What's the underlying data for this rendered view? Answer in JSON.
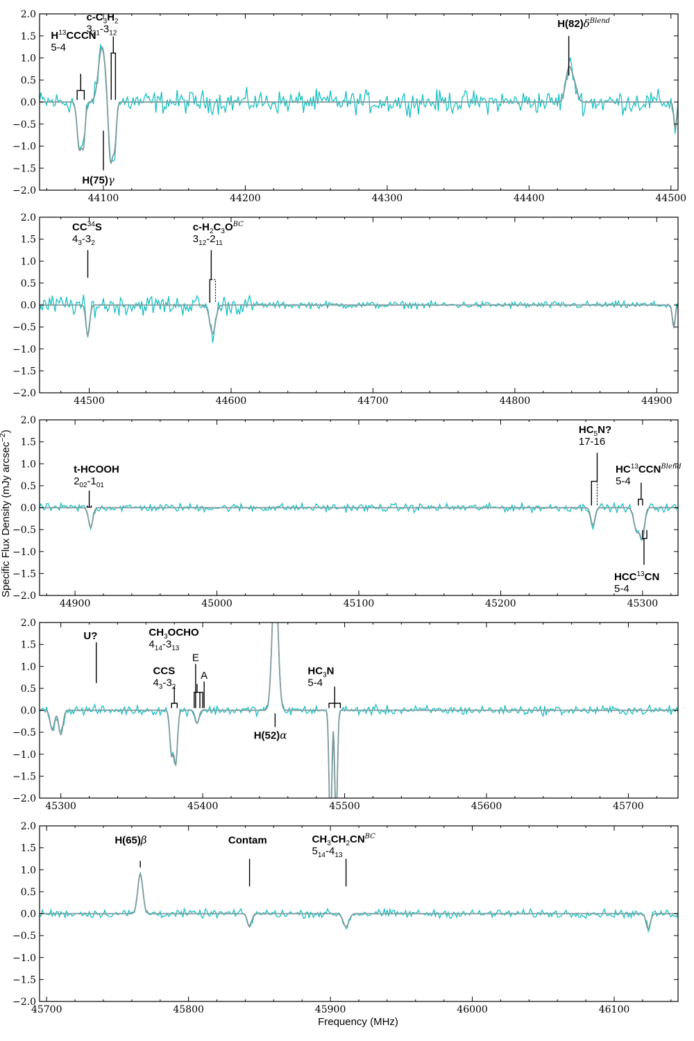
{
  "chart_data": [
    {
      "type": "line",
      "xlim": [
        44055,
        44505
      ],
      "ylim": [
        -2.0,
        2.0
      ],
      "xticks": [
        44100,
        44200,
        44300,
        44400,
        44500
      ],
      "yticks": [
        2.0,
        1.5,
        1.0,
        0.5,
        0.0,
        -0.5,
        -1.0,
        -1.5,
        -2.0
      ],
      "series": [
        {
          "role": "data",
          "color": "#18bfc0"
        },
        {
          "role": "model",
          "color": "#7f9a9c"
        }
      ],
      "components": [
        {
          "center": 44099,
          "amp": 1.25,
          "width": 2.5
        },
        {
          "center": 44083,
          "amp": -1.05,
          "width": 1.5
        },
        {
          "center": 44086,
          "amp": -0.9,
          "width": 1.2
        },
        {
          "center": 44105,
          "amp": -1.4,
          "width": 1.5
        },
        {
          "center": 44108,
          "amp": -0.9,
          "width": 1.2
        },
        {
          "center": 44428,
          "amp": 0.75,
          "width": 2.2
        },
        {
          "center": 44432,
          "amp": 0.35,
          "width": 2.0
        },
        {
          "center": 44503,
          "amp": -0.6,
          "width": 1.0
        }
      ],
      "noise": 0.22,
      "labels": [
        {
          "name": [
            "H",
            {
              "sup": "13"
            },
            "CCCN"
          ],
          "transition": "5-4",
          "freq": 44084,
          "align": "end",
          "name_xy": [
            44063,
            1.43
          ],
          "ticks": [
            44081.5,
            44086.5
          ],
          "bar_top": 0.45
        },
        {
          "name": [
            "c-C",
            {
              "sub": "3"
            },
            "H",
            {
              "sub": "2"
            }
          ],
          "transition": [
            "3",
            {
              "sub": "21"
            },
            "-3",
            {
              "sub": "12"
            }
          ],
          "freq": 44107,
          "align": "start",
          "name_xy": [
            44088,
            1.85
          ],
          "ticks": [
            44105.5,
            44108.5
          ],
          "bar_top": 1.3
        },
        {
          "name": [
            "H(82)",
            {
              "i": "δ"
            },
            {
              "supi": "Blend"
            }
          ],
          "transition": "",
          "freq": 44428,
          "align": "start",
          "name_xy": [
            44420,
            1.7
          ],
          "ticks": [],
          "bar_top": 1.5,
          "bar_bottom": 0.6
        },
        {
          "name": [
            "H(75)",
            {
              "i": "γ"
            }
          ],
          "transition": "",
          "freq": 44100,
          "align": "start",
          "name_xy": [
            44085,
            -1.85
          ],
          "below": true,
          "bar_top": -0.65,
          "bar_bottom": -1.55
        }
      ]
    },
    {
      "type": "line",
      "xlim": [
        44465,
        44915
      ],
      "ylim": [
        -2.0,
        2.0
      ],
      "xticks": [
        44500,
        44600,
        44700,
        44800,
        44900
      ],
      "yticks": [
        2.0,
        1.5,
        1.0,
        0.5,
        0.0,
        -0.5,
        -1.0,
        -1.5,
        -2.0
      ],
      "series": [
        {
          "role": "data",
          "color": "#18bfc0"
        },
        {
          "role": "model",
          "color": "#7f9a9c"
        }
      ],
      "components": [
        {
          "center": 44499,
          "amp": -0.7,
          "width": 1.3
        },
        {
          "center": 44587,
          "amp": -0.65,
          "width": 2.0
        },
        {
          "center": 44912,
          "amp": -0.5,
          "width": 1.0
        }
      ],
      "noise": 0.2,
      "quiet_after": 44615,
      "labels": [
        {
          "name": [
            "CC",
            {
              "sup": "34"
            },
            "S"
          ],
          "transition": [
            "4",
            {
              "sub": "3"
            },
            "-3",
            {
              "sub": "2"
            }
          ],
          "freq": 44499,
          "align": "start",
          "name_xy": [
            44488,
            1.7
          ],
          "ticks": [],
          "bar_top": 1.25,
          "bar_bottom": 0.62
        },
        {
          "name": [
            "c-H",
            {
              "sub": "2"
            },
            "C",
            {
              "sub": "3"
            },
            "O",
            {
              "supi": "BC"
            }
          ],
          "transition": [
            "3",
            {
              "sub": "12"
            },
            "-2",
            {
              "sub": "11"
            }
          ],
          "freq": 44586,
          "align": "start",
          "name_xy": [
            44573,
            1.7
          ],
          "ticks": [
            44585
          ],
          "dotted": [
            44589
          ],
          "bar_top": 1.25,
          "bar_bottom": 0.58
        }
      ]
    },
    {
      "type": "line",
      "xlim": [
        44875,
        45325
      ],
      "ylim": [
        -2.0,
        2.0
      ],
      "xticks": [
        44900,
        45000,
        45100,
        45200,
        45300
      ],
      "yticks": [
        2.0,
        1.5,
        1.0,
        0.5,
        0.0,
        -0.5,
        -1.0,
        -1.5,
        -2.0
      ],
      "series": [
        {
          "role": "data",
          "color": "#18bfc0"
        },
        {
          "role": "model",
          "color": "#7f9a9c"
        }
      ],
      "components": [
        {
          "center": 44911,
          "amp": -0.45,
          "width": 1.5
        },
        {
          "center": 45265,
          "amp": -0.4,
          "width": 1.5
        },
        {
          "center": 45296,
          "amp": -0.55,
          "width": 2.0
        },
        {
          "center": 45300,
          "amp": -0.65,
          "width": 1.5
        }
      ],
      "noise": 0.08,
      "labels": [
        {
          "name": [
            "t-HCOOH"
          ],
          "transition": [
            "2",
            {
              "sub": "02"
            },
            "-1",
            {
              "sub": "01"
            }
          ],
          "freq": 44910,
          "align": "start",
          "name_xy": [
            44899,
            0.8
          ],
          "ticks": [
            44910
          ],
          "bar_top": 0.2
        },
        {
          "name": [
            "HC",
            {
              "sub": "5"
            },
            "N?"
          ],
          "transition": "17-16",
          "freq": 45268,
          "align": "start",
          "name_xy": [
            45255,
            1.7
          ],
          "ticks": [
            45264
          ],
          "dotted": [
            45268
          ],
          "bar_top": 1.25,
          "bar_bottom": 0.6
        },
        {
          "name": [
            "HC",
            {
              "sup": "13"
            },
            "CCN",
            {
              "supi": "Blend"
            }
          ],
          "transition": "5-4",
          "freq": 45299,
          "align": "start",
          "name_xy": [
            45281,
            0.8
          ],
          "ticks": [
            45297,
            45300
          ],
          "bar_top": 0.38
        },
        {
          "name": [
            "HCC",
            {
              "sup": "13"
            },
            "CN"
          ],
          "transition": "5-4",
          "freq": 45301,
          "align": "start",
          "name_xy": [
            45280,
            -1.65
          ],
          "below": true,
          "ticks_below": [
            45300,
            45303
          ],
          "bar_top": -0.7,
          "bar_bottom": -1.3
        }
      ]
    },
    {
      "type": "line",
      "xlim": [
        45285,
        45735
      ],
      "ylim": [
        -2.0,
        2.0
      ],
      "xticks": [
        45300,
        45400,
        45500,
        45600,
        45700
      ],
      "yticks": [
        2.0,
        1.5,
        1.0,
        0.5,
        0.0,
        -0.5,
        -1.0,
        -1.5,
        -2.0
      ],
      "series": [
        {
          "role": "data",
          "color": "#18bfc0"
        },
        {
          "role": "model",
          "color": "#7f9a9c"
        }
      ],
      "components": [
        {
          "center": 45294,
          "amp": -0.45,
          "width": 1.5
        },
        {
          "center": 45300,
          "amp": -0.55,
          "width": 1.5
        },
        {
          "center": 45378,
          "amp": -1.0,
          "width": 1.2
        },
        {
          "center": 45381,
          "amp": -1.2,
          "width": 1.2
        },
        {
          "center": 45396,
          "amp": -0.3,
          "width": 1.3
        },
        {
          "center": 45451,
          "amp": 3.2,
          "width": 2.0
        },
        {
          "center": 45490,
          "amp": -3.0,
          "width": 0.9
        },
        {
          "center": 45494,
          "amp": -2.6,
          "width": 0.9
        }
      ],
      "noise": 0.09,
      "labels": [
        {
          "name": [
            "U?"
          ],
          "transition": "",
          "freq": 45325,
          "align": "start",
          "name_xy": [
            45316,
            1.62
          ],
          "ticks": [],
          "bar_top": 1.55,
          "bar_bottom": 0.62
        },
        {
          "name": [
            "CCS"
          ],
          "transition": [
            "4",
            {
              "sub": "3"
            },
            "-3",
            {
              "sub": "2"
            }
          ],
          "freq": 45380,
          "align": "start",
          "name_xy": [
            45365,
            0.82
          ],
          "ticks": [
            45378,
            45382
          ],
          "bar_top": 0.35
        },
        {
          "name": [
            "CH",
            {
              "sub": "3"
            },
            "OCHO"
          ],
          "transition": [
            "4",
            {
              "sub": "14"
            },
            "-3",
            {
              "sub": "13"
            }
          ],
          "freq": 45396,
          "align": "start",
          "name_xy": [
            45362,
            1.7
          ],
          "ticks": [
            45394,
            45398,
            45400
          ],
          "bar_top": 0.6,
          "sublabels": [
            {
              "text": "E",
              "freq": 45395,
              "y": 1.12
            },
            {
              "text": "A",
              "freq": 45401,
              "y": 0.72
            }
          ]
        },
        {
          "name": [
            "H(52)",
            {
              "i": "α"
            }
          ],
          "transition": "",
          "freq": 45451,
          "align": "start",
          "name_xy": [
            45436,
            -0.65
          ],
          "below": true,
          "bar_top": -0.07,
          "bar_bottom": -0.38
        },
        {
          "name": [
            "HC",
            {
              "sub": "3"
            },
            "N"
          ],
          "transition": "5-4",
          "freq": 45493,
          "align": "start",
          "name_xy": [
            45474,
            0.82
          ],
          "ticks": [
            45489,
            45493,
            45497
          ],
          "bar_top": 0.35
        }
      ]
    },
    {
      "type": "line",
      "xlim": [
        45695,
        46145
      ],
      "ylim": [
        -2.0,
        2.0
      ],
      "xticks": [
        45700,
        45800,
        45900,
        46000,
        46100
      ],
      "yticks": [
        2.0,
        1.5,
        1.0,
        0.5,
        0.0,
        -0.5,
        -1.0,
        -1.5,
        -2.0
      ],
      "series": [
        {
          "role": "data",
          "color": "#18bfc0"
        },
        {
          "role": "model",
          "color": "#7f9a9c"
        }
      ],
      "components": [
        {
          "center": 45766,
          "amp": 0.9,
          "width": 1.8
        },
        {
          "center": 45843,
          "amp": -0.3,
          "width": 1.5
        },
        {
          "center": 45911,
          "amp": -0.3,
          "width": 2.0
        },
        {
          "center": 46124,
          "amp": -0.35,
          "width": 1.5
        }
      ],
      "noise": 0.08,
      "labels": [
        {
          "name": [
            "H(65)",
            {
              "i": "β"
            }
          ],
          "transition": "",
          "freq": 45766,
          "align": "start",
          "name_xy": [
            45748,
            1.6
          ],
          "ticks": [],
          "bar_top": 1.2,
          "bar_bottom": 1.05
        },
        {
          "name": [
            "Contam"
          ],
          "transition": "",
          "freq": 45843,
          "align": "start",
          "name_xy": [
            45828,
            1.6
          ],
          "ticks": [],
          "bar_top": 1.25,
          "bar_bottom": 0.62
        },
        {
          "name": [
            "CH",
            {
              "sub": "3"
            },
            "CH",
            {
              "sub": "2"
            },
            "CN",
            {
              "supi": "BC"
            }
          ],
          "transition": [
            "5",
            {
              "sub": "14"
            },
            "-4",
            {
              "sub": "13"
            }
          ],
          "freq": 45911,
          "align": "start",
          "name_xy": [
            45887,
            1.62
          ],
          "ticks": [],
          "bar_top": 1.25,
          "bar_bottom": 0.62
        }
      ]
    }
  ],
  "axes": {
    "xlabel": "Frequency (MHz)",
    "ylabel": "Specific Flux Density (mJy arcsec",
    "ylabel_sup": "−2",
    "ylabel_close": ")"
  }
}
